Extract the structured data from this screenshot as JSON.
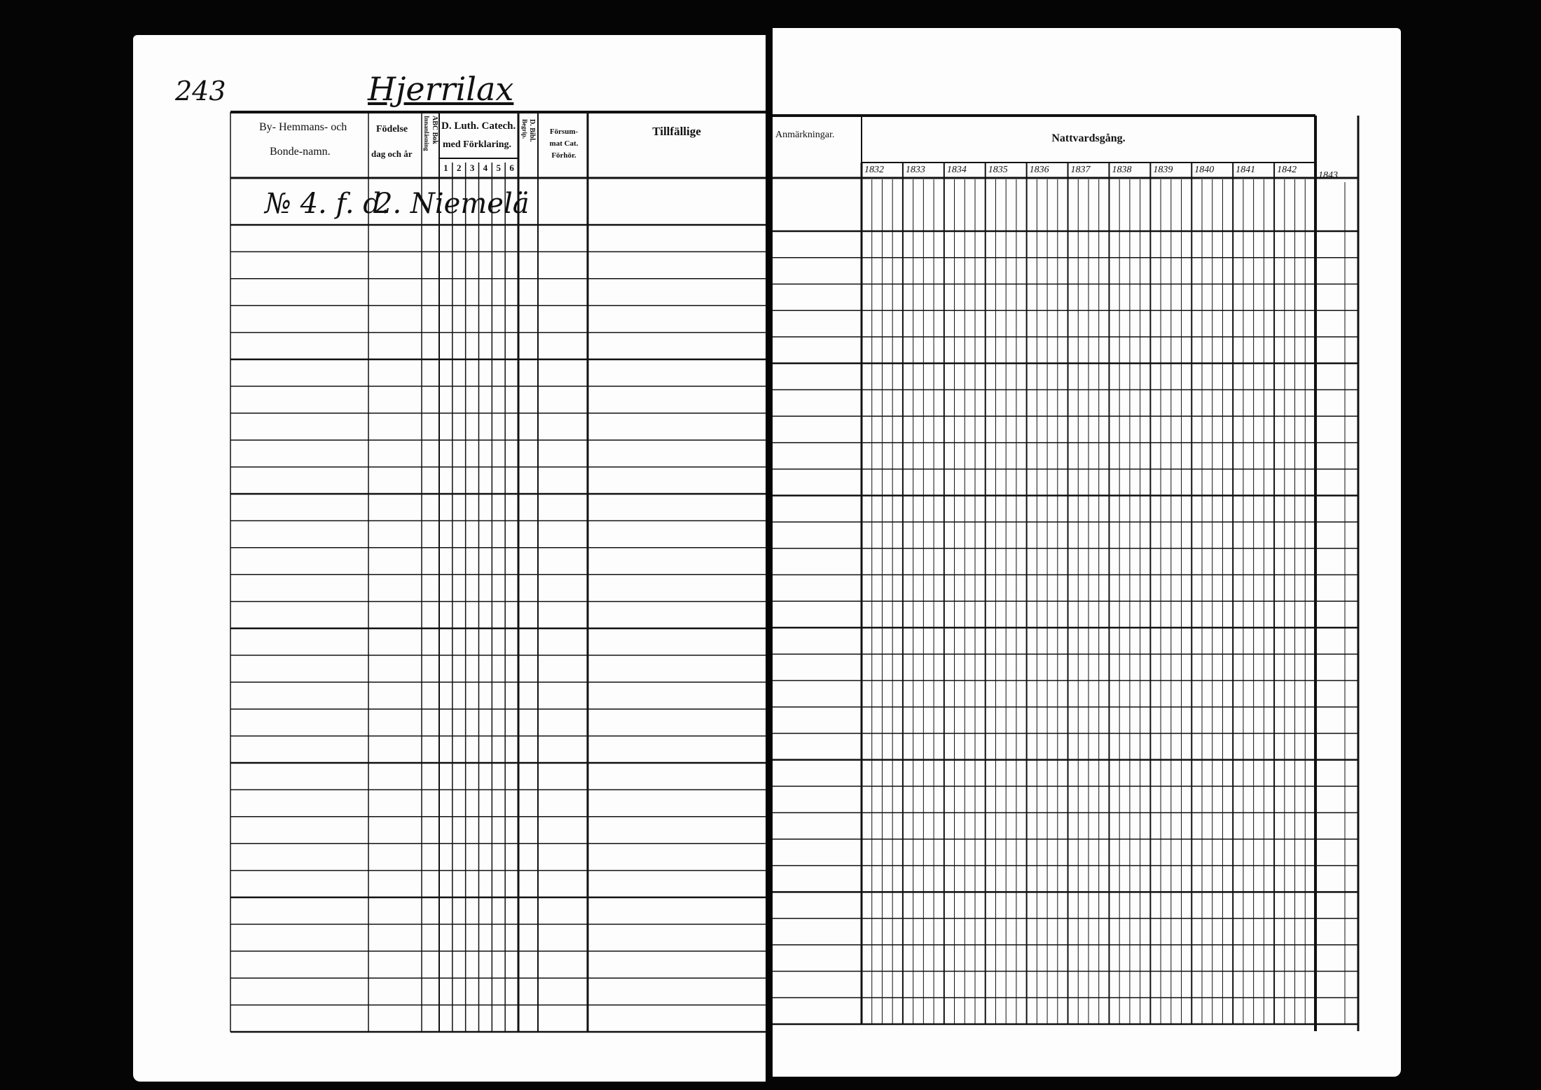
{
  "left_page": {
    "page_number": "243",
    "village_name": "Hjerrilax",
    "headers": {
      "name_col_line1": "By- Hemmans- och",
      "name_col_line2": "Bonde-namn.",
      "birth_col_line1": "Födelse",
      "birth_col_line2": "dag och år",
      "abc_col": "ABC Bok",
      "abc_col_sub": "Innanläsning",
      "catech_line1": "D. Luth. Catech.",
      "catech_line2": "med Förklaring.",
      "catech_parts": [
        "1",
        "2",
        "3",
        "4",
        "5",
        "6"
      ],
      "bibl_col": "D. Bibl.",
      "bibl_col_sub": "Begrip.",
      "forsummat_line1": "Försum-",
      "forsummat_line2": "mat Cat.",
      "forsummat_line3": "Förhör.",
      "tillfallige": "Tillfällige"
    },
    "entries": [
      {
        "homestead": "№ 4. f. d.",
        "name": "2. Niemelä"
      }
    ]
  },
  "right_page": {
    "headers": {
      "remarks": "Anmärkningar.",
      "communion": "Nattvardsgång."
    },
    "years": [
      "1832",
      "1833",
      "1834",
      "1835",
      "1836",
      "1837",
      "1838",
      "1839",
      "1840",
      "1841",
      "1842"
    ],
    "extra_year": "1843"
  },
  "colors": {
    "paper": "#fdfdfd",
    "ink": "#111111",
    "background": "#050505"
  }
}
